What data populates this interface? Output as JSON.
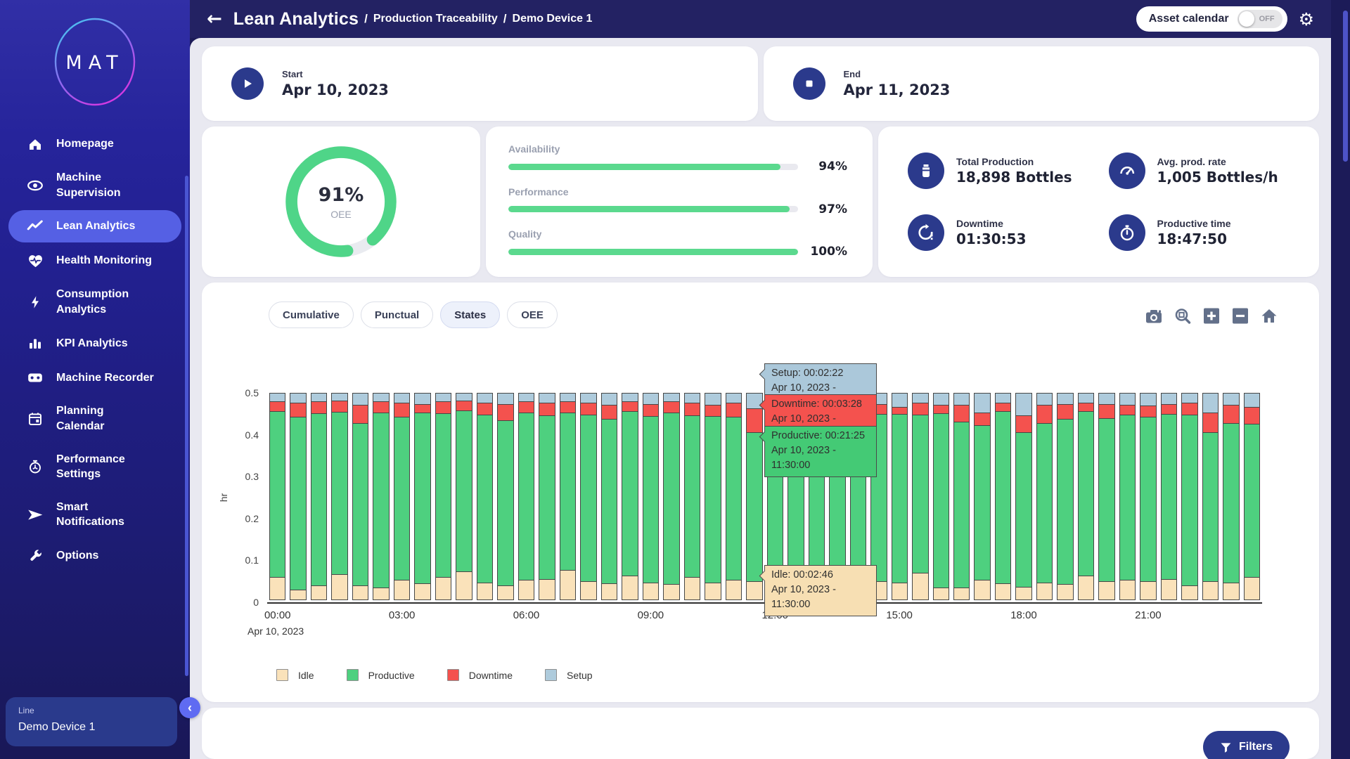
{
  "colors": {
    "sidebar_active": "#5560e4",
    "primary_navy": "#2b3a8c",
    "header_navy": "#232263",
    "progress_green": "#5bd98e",
    "gauge_green": "#4fd588",
    "idle_tan": "#fae2ba",
    "productive_green": "#4ed07f",
    "downtime_red": "#f4524e",
    "setup_blue": "#aecbdc"
  },
  "sidebar": {
    "logo_text": "MAT",
    "items": [
      {
        "lines": [
          "Homepage"
        ],
        "icon": "home-icon",
        "active": false
      },
      {
        "lines": [
          "Machine",
          "Supervision"
        ],
        "icon": "eye-icon",
        "active": false
      },
      {
        "lines": [
          "Lean Analytics"
        ],
        "icon": "trend-icon",
        "active": true
      },
      {
        "lines": [
          "Health Monitoring"
        ],
        "icon": "heart-pulse-icon",
        "active": false
      },
      {
        "lines": [
          "Consumption",
          "Analytics"
        ],
        "icon": "bolt-icon",
        "active": false
      },
      {
        "lines": [
          "KPI Analytics"
        ],
        "icon": "bar-chart-icon",
        "active": false
      },
      {
        "lines": [
          "Machine Recorder"
        ],
        "icon": "recorder-icon",
        "active": false
      },
      {
        "lines": [
          "Planning",
          "Calendar"
        ],
        "icon": "calendar-icon",
        "active": false
      },
      {
        "lines": [
          "Performance",
          "Settings"
        ],
        "icon": "speed-settings-icon",
        "active": false
      },
      {
        "lines": [
          "Smart",
          "Notifications"
        ],
        "icon": "send-icon",
        "active": false
      },
      {
        "lines": [
          "Options"
        ],
        "icon": "wrench-icon",
        "active": false
      }
    ],
    "footer": {
      "label": "Line",
      "value": "Demo Device 1"
    },
    "collapse_glyph": "‹"
  },
  "header": {
    "back_glyph": "←",
    "title": "Lean Analytics",
    "separator": "/",
    "breadcrumbs": [
      "Production Traceability",
      "Demo Device 1"
    ],
    "asset_calendar": {
      "label": "Asset calendar",
      "state": "OFF"
    },
    "gear_glyph": "⚙"
  },
  "period": {
    "start": {
      "label": "Start",
      "value": "Apr 10, 2023"
    },
    "end": {
      "label": "End",
      "value": "Apr 11, 2023"
    }
  },
  "oee": {
    "value": "91%",
    "label": "OEE",
    "percent": 91
  },
  "metrics": [
    {
      "label": "Availability",
      "percent": 94,
      "display": "94%"
    },
    {
      "label": "Performance",
      "percent": 97,
      "display": "97%"
    },
    {
      "label": "Quality",
      "percent": 100,
      "display": "100%"
    }
  ],
  "kpis": [
    {
      "label": "Total Production",
      "value": "18,898 Bottles",
      "icon": "bottle-icon"
    },
    {
      "label": "Avg. prod. rate",
      "value": "1,005 Bottles/h",
      "icon": "speedometer-icon"
    },
    {
      "label": "Downtime",
      "value": "01:30:53",
      "icon": "downtime-clock-icon"
    },
    {
      "label": "Productive time",
      "value": "18:47:50",
      "icon": "stopwatch-icon"
    }
  ],
  "chart_tabs": [
    {
      "label": "Cumulative",
      "active": false
    },
    {
      "label": "Punctual",
      "active": false
    },
    {
      "label": "States",
      "active": true
    },
    {
      "label": "OEE",
      "active": false
    }
  ],
  "chart_toolbar": [
    "camera-icon",
    "zoom-box-icon",
    "zoom-in-icon",
    "zoom-out-icon",
    "home-reset-icon"
  ],
  "chart_data": {
    "type": "bar",
    "stacked": true,
    "ylabel": "hr",
    "ylim": [
      0,
      0.5
    ],
    "yticks": [
      0,
      0.1,
      0.2,
      0.3,
      0.4,
      0.5
    ],
    "x_axis_date": "Apr 10, 2023",
    "xticks": [
      "00:00",
      "03:00",
      "06:00",
      "09:00",
      "12:00",
      "15:00",
      "18:00",
      "21:00"
    ],
    "xtick_indices": [
      0,
      6,
      12,
      18,
      24,
      30,
      36,
      42
    ],
    "grid": false,
    "legend_position": "bottom",
    "hover_index": 23,
    "categories": [
      "00:00",
      "00:30",
      "01:00",
      "01:30",
      "02:00",
      "02:30",
      "03:00",
      "03:30",
      "04:00",
      "04:30",
      "05:00",
      "05:30",
      "06:00",
      "06:30",
      "07:00",
      "07:30",
      "08:00",
      "08:30",
      "09:00",
      "09:30",
      "10:00",
      "10:30",
      "11:00",
      "11:30",
      "12:00",
      "12:30",
      "13:00",
      "13:30",
      "14:00",
      "14:30",
      "15:00",
      "15:30",
      "16:00",
      "16:30",
      "17:00",
      "17:30",
      "18:00",
      "18:30",
      "19:00",
      "19:30",
      "20:00",
      "20:30",
      "21:00",
      "21:30",
      "22:00",
      "22:30",
      "23:00",
      "23:30"
    ],
    "series": [
      {
        "name": "Idle",
        "color": "#fae2ba",
        "values": [
          0.055,
          0.025,
          0.035,
          0.062,
          0.035,
          0.03,
          0.048,
          0.04,
          0.055,
          0.068,
          0.042,
          0.035,
          0.048,
          0.05,
          0.072,
          0.045,
          0.04,
          0.058,
          0.042,
          0.038,
          0.055,
          0.042,
          0.048,
          0.046,
          0.04,
          0.045,
          0.052,
          0.038,
          0.06,
          0.045,
          0.042,
          0.065,
          0.03,
          0.03,
          0.048,
          0.04,
          0.032,
          0.042,
          0.038,
          0.058,
          0.045,
          0.048,
          0.045,
          0.05,
          0.035,
          0.045,
          0.042,
          0.055
        ]
      },
      {
        "name": "Productive",
        "color": "#4ed07f",
        "values": [
          0.398,
          0.415,
          0.413,
          0.39,
          0.39,
          0.42,
          0.392,
          0.41,
          0.393,
          0.387,
          0.403,
          0.397,
          0.402,
          0.393,
          0.378,
          0.4,
          0.395,
          0.395,
          0.4,
          0.412,
          0.388,
          0.4,
          0.392,
          0.357,
          0.405,
          0.405,
          0.388,
          0.409,
          0.388,
          0.402,
          0.405,
          0.38,
          0.418,
          0.398,
          0.372,
          0.413,
          0.371,
          0.383,
          0.396,
          0.395,
          0.392,
          0.397,
          0.395,
          0.397,
          0.41,
          0.357,
          0.383,
          0.368
        ]
      },
      {
        "name": "Downtime",
        "color": "#f4524e",
        "values": [
          0.025,
          0.035,
          0.03,
          0.028,
          0.045,
          0.028,
          0.035,
          0.022,
          0.03,
          0.025,
          0.03,
          0.04,
          0.028,
          0.032,
          0.028,
          0.03,
          0.035,
          0.025,
          0.03,
          0.028,
          0.032,
          0.028,
          0.035,
          0.058,
          0.03,
          0.028,
          0.032,
          0.028,
          0.03,
          0.025,
          0.018,
          0.03,
          0.022,
          0.042,
          0.032,
          0.022,
          0.042,
          0.045,
          0.038,
          0.022,
          0.035,
          0.025,
          0.028,
          0.025,
          0.03,
          0.05,
          0.045,
          0.042
        ]
      },
      {
        "name": "Setup",
        "color": "#aecbdc",
        "values": [
          0.022,
          0.025,
          0.022,
          0.02,
          0.03,
          0.022,
          0.025,
          0.028,
          0.022,
          0.02,
          0.025,
          0.028,
          0.022,
          0.025,
          0.022,
          0.025,
          0.03,
          0.022,
          0.028,
          0.022,
          0.025,
          0.03,
          0.025,
          0.039,
          0.025,
          0.022,
          0.028,
          0.025,
          0.022,
          0.028,
          0.035,
          0.025,
          0.03,
          0.03,
          0.048,
          0.025,
          0.055,
          0.03,
          0.028,
          0.025,
          0.028,
          0.03,
          0.032,
          0.028,
          0.025,
          0.048,
          0.03,
          0.035
        ]
      }
    ]
  },
  "tooltips": [
    {
      "text": "Setup: 00:02:22",
      "datetime": "Apr 10, 2023 - 11:30:00",
      "bg": "#abc8da",
      "group": "stack"
    },
    {
      "text": "Downtime: 00:03:28",
      "datetime": "Apr 10, 2023 - 11:30:00",
      "bg": "#f4524e",
      "group": "stack"
    },
    {
      "text": "Productive: 00:21:25",
      "datetime": "Apr 10, 2023 - 11:30:00",
      "bg": "#44ca75",
      "group": "stack"
    },
    {
      "text": "Idle: 00:02:46",
      "datetime": "Apr 10, 2023 - 11:30:00",
      "bg": "#f7dfb3",
      "group": "idle"
    }
  ],
  "filters": {
    "label": "Filters"
  }
}
